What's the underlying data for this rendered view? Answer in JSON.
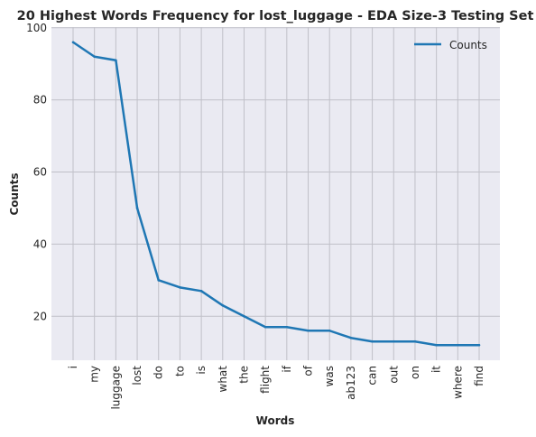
{
  "chart_data": {
    "type": "line",
    "title": "20 Highest Words Frequency for lost_luggage - EDA Size-3 Testing Set",
    "xlabel": "Words",
    "ylabel": "Counts",
    "categories": [
      "i",
      "my",
      "luggage",
      "lost",
      "do",
      "to",
      "is",
      "what",
      "the",
      "flight",
      "if",
      "of",
      "was",
      "ab123",
      "can",
      "out",
      "on",
      "it",
      "where",
      "find"
    ],
    "series": [
      {
        "name": "Counts",
        "values": [
          96,
          92,
          91,
          50,
          30,
          28,
          27,
          23,
          20,
          17,
          17,
          16,
          16,
          14,
          13,
          13,
          13,
          12,
          12,
          12
        ],
        "color": "#1f77b4"
      }
    ],
    "ylim": [
      7.8,
      100.2
    ],
    "yticks": [
      20,
      40,
      60,
      80,
      100
    ],
    "grid": true,
    "legend_position": "top-right",
    "background_color": "#eaeaf2",
    "grid_color": "#c0c0c8"
  }
}
